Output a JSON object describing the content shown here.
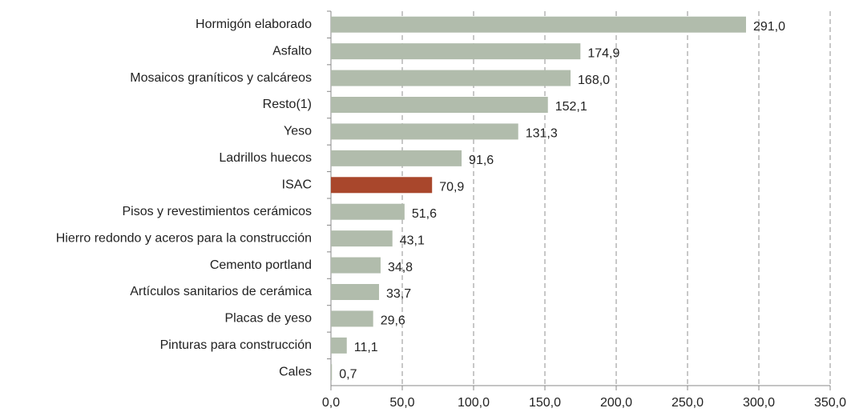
{
  "chart_data": {
    "type": "bar",
    "orientation": "horizontal",
    "categories": [
      "Hormigón elaborado",
      "Asfalto",
      "Mosaicos graníticos y calcáreos",
      "Resto(1)",
      "Yeso",
      "Ladrillos huecos",
      "ISAC",
      "Pisos y revestimientos cerámicos",
      "Hierro redondo y aceros para la construcción",
      "Cemento portland",
      "Artículos sanitarios de cerámica",
      "Placas de yeso",
      "Pinturas para construcción",
      "Cales"
    ],
    "values": [
      291.0,
      174.9,
      168.0,
      152.1,
      131.3,
      91.6,
      70.9,
      51.6,
      43.1,
      34.8,
      33.7,
      29.6,
      11.1,
      0.7
    ],
    "value_labels": [
      "291,0",
      "174,9",
      "168,0",
      "152,1",
      "131,3",
      "91,6",
      "70,9",
      "51,6",
      "43,1",
      "34,8",
      "33,7",
      "29,6",
      "11,1",
      "0,7"
    ],
    "colors": [
      "#b1bcac",
      "#b1bcac",
      "#b1bcac",
      "#b1bcac",
      "#b1bcac",
      "#b1bcac",
      "#a9472c",
      "#b1bcac",
      "#b1bcac",
      "#b1bcac",
      "#b1bcac",
      "#b1bcac",
      "#b1bcac",
      "#b1bcac"
    ],
    "xlim": [
      0,
      350
    ],
    "xticks": [
      {
        "value": 0,
        "label": "0,0"
      },
      {
        "value": 50,
        "label": "50,0"
      },
      {
        "value": 100,
        "label": "100,0"
      },
      {
        "value": 150,
        "label": "150,0"
      },
      {
        "value": 200,
        "label": "200,0"
      },
      {
        "value": 250,
        "label": "250,0"
      },
      {
        "value": 300,
        "label": "300,0"
      },
      {
        "value": 350,
        "label": "350,0"
      }
    ],
    "grid": true
  }
}
